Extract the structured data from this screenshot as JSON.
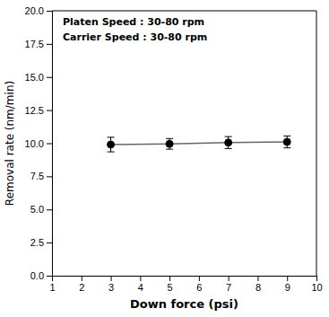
{
  "chart_data": {
    "type": "line",
    "xlabel": "Down force (psi)",
    "ylabel": "Removal rate (nm/min)",
    "annotations": [
      "Platen Speed : 30-80 rpm",
      "Carrier Speed : 30-80 rpm"
    ],
    "x": [
      3,
      5,
      7,
      9
    ],
    "series": [
      {
        "values": [
          9.9,
          9.95,
          10.05,
          10.1
        ],
        "yerr": [
          0.55,
          0.4,
          0.45,
          0.45
        ],
        "color": "#000000",
        "marker": "circle"
      }
    ],
    "color": "#666666",
    "xlim": [
      1,
      10
    ],
    "ylim": [
      0.0,
      20.0
    ],
    "xticks": [
      1,
      2,
      3,
      4,
      5,
      6,
      7,
      8,
      9,
      10
    ],
    "yticks": [
      {
        "value": 0.0,
        "label": "0.0"
      },
      2.5,
      {
        "value": 5.0,
        "label": "5.0"
      },
      7.5,
      {
        "value": 10.0,
        "label": "10.0"
      },
      12.5,
      {
        "value": 15.0,
        "label": "15.0"
      },
      17.5,
      {
        "value": 20.0,
        "label": "20.0"
      }
    ],
    "grid": false
  }
}
